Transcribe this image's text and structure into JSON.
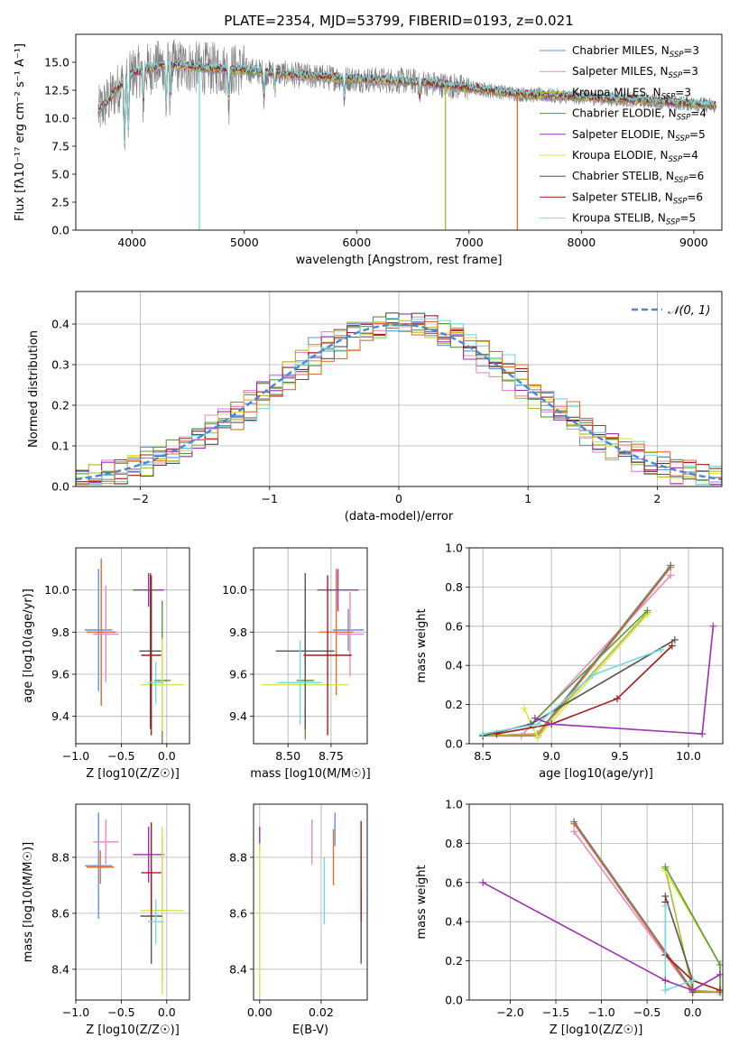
{
  "figure_title": "PLATE=2354, MJD=53799, FIBERID=0193, z=0.021",
  "colors": {
    "model_colors": [
      "#6a8fd8",
      "#e58ac6",
      "#b5b52e",
      "#5b9a3a",
      "#9b30b0",
      "#d9e44a",
      "#555555",
      "#a81b1b",
      "#73d9de"
    ],
    "extra_colors": [
      "#e07030",
      "#7a7a7a"
    ],
    "gauss": "#4a86d8"
  },
  "chart_data": [
    {
      "id": "spectrum",
      "type": "line",
      "title": "PLATE=2354, MJD=53799, FIBERID=0193, z=0.021",
      "xlabel": "wavelength [Angstrom, rest frame]",
      "ylabel": "Flux [fλ10⁻¹⁷ erg cm⁻² s⁻¹ A⁻¹]",
      "xlim": [
        3500,
        9250
      ],
      "ylim": [
        0,
        17.5
      ],
      "xticks": [
        4000,
        5000,
        6000,
        7000,
        8000,
        9000
      ],
      "xtick_labels": [
        "4000",
        "5000",
        "6000",
        "7000",
        "8000",
        "9000"
      ],
      "yticks": [
        0,
        2.5,
        5,
        7.5,
        10,
        12.5,
        15
      ],
      "ytick_labels": [
        "0.0",
        "2.5",
        "5.0",
        "7.5",
        "10.0",
        "12.5",
        "15.0"
      ],
      "legend_placement": "upper right",
      "series": [
        {
          "name": "Chabrier MILES, N_SSP=3",
          "label": "Chabrier MILES, N",
          "sub": "SSP",
          "suffix": "=3"
        },
        {
          "name": "Salpeter MILES, N_SSP=3",
          "label": "Salpeter MILES, N",
          "sub": "SSP",
          "suffix": "=3"
        },
        {
          "name": "Kroupa MILES, N_SSP=3",
          "label": "Kroupa MILES, N",
          "sub": "SSP",
          "suffix": "=3"
        },
        {
          "name": "Chabrier ELODIE, N_SSP=4",
          "label": "Chabrier ELODIE, N",
          "sub": "SSP",
          "suffix": "=4"
        },
        {
          "name": "Salpeter ELODIE, N_SSP=5",
          "label": "Salpeter ELODIE, N",
          "sub": "SSP",
          "suffix": "=5"
        },
        {
          "name": "Kroupa ELODIE, N_SSP=4",
          "label": "Kroupa ELODIE, N",
          "sub": "SSP",
          "suffix": "=4"
        },
        {
          "name": "Chabrier STELIB, N_SSP=6",
          "label": "Chabrier STELIB, N",
          "sub": "SSP",
          "suffix": "=6"
        },
        {
          "name": "Salpeter STELIB, N_SSP=6",
          "label": "Salpeter STELIB, N",
          "sub": "SSP",
          "suffix": "=6"
        },
        {
          "name": "Kroupa STELIB, N_SSP=5",
          "label": "Kroupa STELIB, N",
          "sub": "SSP",
          "suffix": "=5"
        }
      ],
      "continuum": {
        "x": [
          3700,
          3900,
          4000,
          4300,
          4600,
          5000,
          5500,
          6000,
          6500,
          7000,
          7500,
          8000,
          8500,
          9000,
          9200
        ],
        "y": [
          10.5,
          13.0,
          14.0,
          14.8,
          14.5,
          14.3,
          13.8,
          13.5,
          13.3,
          12.7,
          12.1,
          11.9,
          11.6,
          11.3,
          11.1
        ]
      },
      "cutoffs": [
        {
          "x": 4600,
          "series": 8
        },
        {
          "x": 6790,
          "series": 2
        },
        {
          "x": 7430,
          "series": "extra"
        }
      ]
    },
    {
      "id": "residuals",
      "type": "line",
      "xlabel": "(data-model)/error",
      "ylabel": "Normed distribution",
      "xlim": [
        -2.5,
        2.5
      ],
      "ylim": [
        0,
        0.48
      ],
      "xticks": [
        -2,
        -1,
        0,
        1,
        2
      ],
      "xtick_labels": [
        "−2",
        "−1",
        "0",
        "1",
        "2"
      ],
      "yticks": [
        0,
        0.1,
        0.2,
        0.3,
        0.4
      ],
      "ytick_labels": [
        "0.0",
        "0.1",
        "0.2",
        "0.3",
        "0.4"
      ],
      "legend": "𝒩(0, 1)",
      "legend_placement": "upper right",
      "gaussian": {
        "mean": 0,
        "sigma": 1
      }
    },
    {
      "id": "age_vs_Z",
      "type": "scatter",
      "xlabel": "Z [log10(Z/Z☉)]",
      "ylabel": "age  [log10(age/yr)]",
      "xlim": [
        -1.0,
        0.25
      ],
      "ylim": [
        9.27,
        10.2
      ],
      "xticks": [
        -1.0,
        -0.5,
        0.0
      ],
      "xtick_labels": [
        "−1.0",
        "−0.5",
        "0.0"
      ],
      "yticks": [
        9.4,
        9.6,
        9.8,
        10.0
      ],
      "ytick_labels": [
        "9.4",
        "9.6",
        "9.8",
        "10.0"
      ],
      "points": [
        {
          "c": 0,
          "x": -0.75,
          "y": 9.81,
          "xe": 0.15,
          "ye": 0.29
        },
        {
          "c": 9,
          "x": -0.72,
          "y": 9.8,
          "xe": 0.16,
          "ye": 0.35
        },
        {
          "c": 1,
          "x": -0.67,
          "y": 9.79,
          "xe": 0.14,
          "ye": 0.23
        },
        {
          "c": 4,
          "x": -0.2,
          "y": 10.0,
          "xe": 0.17,
          "ye": 0.08
        },
        {
          "c": 3,
          "x": -0.05,
          "y": 9.57,
          "xe": 0.09,
          "ye": 0.38
        },
        {
          "c": 5,
          "x": -0.05,
          "y": 9.55,
          "xe": 0.24,
          "ye": 0.22
        },
        {
          "c": 6,
          "x": -0.18,
          "y": 9.71,
          "xe": 0.12,
          "ye": 0.37
        },
        {
          "c": 7,
          "x": -0.17,
          "y": 9.69,
          "xe": 0.11,
          "ye": 0.38
        },
        {
          "c": 8,
          "x": -0.12,
          "y": 9.56,
          "xe": 0.09,
          "ye": 0.1
        }
      ]
    },
    {
      "id": "age_vs_mass",
      "type": "scatter",
      "xlabel": "mass [log10(M/M☉)]",
      "ylabel": "",
      "xlim": [
        8.3,
        8.96
      ],
      "ylim": [
        9.27,
        10.2
      ],
      "xticks": [
        8.5,
        8.75
      ],
      "xtick_labels": [
        "8.50",
        "8.75"
      ],
      "yticks": [
        9.4,
        9.6,
        9.8,
        10.0
      ],
      "ytick_labels": [
        "9.4",
        "9.6",
        "9.8",
        "10.0"
      ],
      "points": [
        {
          "c": 0,
          "x": 8.85,
          "y": 9.81,
          "xe": 0.09,
          "ye": 0.1
        },
        {
          "c": 9,
          "x": 8.78,
          "y": 9.8,
          "xe": 0.1,
          "ye": 0.3
        },
        {
          "c": 1,
          "x": 8.86,
          "y": 9.79,
          "xe": 0.08,
          "ye": 0.2
        },
        {
          "c": 4,
          "x": 8.79,
          "y": 10.0,
          "xe": 0.12,
          "ye": 0.1
        },
        {
          "c": 3,
          "x": 8.6,
          "y": 9.57,
          "xe": 0.05,
          "ye": 0.28
        },
        {
          "c": 5,
          "x": 8.6,
          "y": 9.55,
          "xe": 0.25,
          "ye": 0.1
        },
        {
          "c": 6,
          "x": 8.6,
          "y": 9.71,
          "xe": 0.17,
          "ye": 0.37
        },
        {
          "c": 7,
          "x": 8.73,
          "y": 9.69,
          "xe": 0.14,
          "ye": 0.38
        },
        {
          "c": 8,
          "x": 8.57,
          "y": 9.56,
          "xe": 0.13,
          "ye": 0.2
        }
      ]
    },
    {
      "id": "mass_weight_vs_age",
      "type": "line",
      "xlabel": "age  [log10(age/yr)]",
      "ylabel": "mass weight",
      "xlim": [
        8.4,
        10.25
      ],
      "ylim": [
        0,
        1.0
      ],
      "xticks": [
        8.5,
        9.0,
        9.5,
        10.0
      ],
      "xtick_labels": [
        "8.5",
        "9.0",
        "9.5",
        "10.0"
      ],
      "yticks": [
        0,
        0.2,
        0.4,
        0.6,
        0.8,
        1.0
      ],
      "ytick_labels": [
        "0.0",
        "0.2",
        "0.4",
        "0.6",
        "0.8",
        "1.0"
      ],
      "series": [
        {
          "c": 0,
          "x": [
            8.5,
            8.9,
            9.87
          ],
          "y": [
            0.04,
            0.05,
            0.91
          ]
        },
        {
          "c": 1,
          "x": [
            8.5,
            8.78,
            9.87
          ],
          "y": [
            0.04,
            0.04,
            0.86
          ]
        },
        {
          "c": 9,
          "x": [
            8.5,
            8.9,
            9.87
          ],
          "y": [
            0.04,
            0.04,
            0.9
          ]
        },
        {
          "c": 10,
          "x": [
            8.5,
            8.9,
            9.87
          ],
          "y": [
            0.04,
            0.05,
            0.91
          ]
        },
        {
          "c": 2,
          "x": [
            8.5,
            8.9,
            9.7
          ],
          "y": [
            0.04,
            0.05,
            0.67
          ]
        },
        {
          "c": 5,
          "x": [
            8.8,
            8.9,
            9.7
          ],
          "y": [
            0.18,
            0.03,
            0.66
          ]
        },
        {
          "c": 3,
          "x": [
            8.5,
            8.85,
            9.7
          ],
          "y": [
            0.04,
            0.1,
            0.68
          ]
        },
        {
          "c": 6,
          "x": [
            8.5,
            8.85,
            9.9
          ],
          "y": [
            0.04,
            0.1,
            0.53
          ]
        },
        {
          "c": 7,
          "x": [
            8.6,
            9.0,
            9.48,
            9.88
          ],
          "y": [
            0.05,
            0.1,
            0.23,
            0.5
          ]
        },
        {
          "c": 8,
          "x": [
            8.5,
            8.9,
            9.3,
            9.8
          ],
          "y": [
            0.05,
            0.1,
            0.35,
            0.48
          ]
        },
        {
          "c": 4,
          "x": [
            8.88,
            9.0,
            10.1,
            10.18
          ],
          "y": [
            0.13,
            0.1,
            0.05,
            0.6
          ]
        }
      ]
    },
    {
      "id": "mass_vs_Z",
      "type": "scatter",
      "xlabel": "Z [log10(Z/Z☉)]",
      "ylabel": "mass [log10(M/M☉)]",
      "xlim": [
        -1.0,
        0.25
      ],
      "ylim": [
        8.29,
        8.99
      ],
      "xticks": [
        -1.0,
        -0.5,
        0.0
      ],
      "xtick_labels": [
        "−1.0",
        "−0.5",
        "0.0"
      ],
      "yticks": [
        8.4,
        8.6,
        8.8
      ],
      "ytick_labels": [
        "8.4",
        "8.6",
        "8.8"
      ],
      "points": [
        {
          "c": 0,
          "x": -0.75,
          "y": 8.77,
          "xe": 0.15,
          "ye": 0.19
        },
        {
          "c": 9,
          "x": -0.73,
          "y": 8.765,
          "xe": 0.15,
          "ye": 0.06
        },
        {
          "c": 1,
          "x": -0.67,
          "y": 8.855,
          "xe": 0.14,
          "ye": 0.08
        },
        {
          "c": 4,
          "x": -0.2,
          "y": 8.81,
          "xe": 0.17,
          "ye": 0.1
        },
        {
          "c": 3,
          "x": -0.05,
          "y": 8.61,
          "xe": 0.08,
          "ye": 0.25
        },
        {
          "c": 5,
          "x": -0.05,
          "y": 8.61,
          "xe": 0.24,
          "ye": 0.3
        },
        {
          "c": 6,
          "x": -0.17,
          "y": 8.59,
          "xe": 0.12,
          "ye": 0.17
        },
        {
          "c": 7,
          "x": -0.17,
          "y": 8.745,
          "xe": 0.11,
          "ye": 0.18
        },
        {
          "c": 8,
          "x": -0.12,
          "y": 8.57,
          "xe": 0.09,
          "ye": 0.08
        }
      ]
    },
    {
      "id": "mass_vs_ebv",
      "type": "scatter",
      "xlabel": "E(B-V)",
      "ylabel": "",
      "xlim": [
        -0.002,
        0.035
      ],
      "ylim": [
        8.29,
        8.99
      ],
      "xticks": [
        0.0,
        0.02
      ],
      "xtick_labels": [
        "0.00",
        "0.02"
      ],
      "yticks": [
        8.4,
        8.6,
        8.8
      ],
      "ytick_labels": [
        "8.4",
        "8.6",
        "8.8"
      ],
      "points": [
        {
          "c": 4,
          "x": 0.0,
          "y": 8.87,
          "xe": 0,
          "ye": 0.04
        },
        {
          "c": 5,
          "x": 0.0,
          "y": 8.58,
          "xe": 0,
          "ye": 0.27
        },
        {
          "c": 1,
          "x": 0.017,
          "y": 8.855,
          "xe": 0,
          "ye": 0.08
        },
        {
          "c": 8,
          "x": 0.021,
          "y": 8.68,
          "xe": 0,
          "ye": 0.12
        },
        {
          "c": 9,
          "x": 0.024,
          "y": 8.8,
          "xe": 0,
          "ye": 0.1
        },
        {
          "c": 0,
          "x": 0.0245,
          "y": 8.9,
          "xe": 0,
          "ye": 0.06
        },
        {
          "c": 6,
          "x": 0.033,
          "y": 8.55,
          "xe": 0,
          "ye": 0.13
        },
        {
          "c": 7,
          "x": 0.033,
          "y": 8.75,
          "xe": 0,
          "ye": 0.18
        }
      ]
    },
    {
      "id": "mass_weight_vs_Z",
      "type": "line",
      "xlabel": "Z [log10(Z/Z☉)]",
      "ylabel": "mass weight",
      "xlim": [
        -2.45,
        0.33
      ],
      "ylim": [
        0,
        1.0
      ],
      "xticks": [
        -2.0,
        -1.5,
        -1.0,
        -0.5,
        0.0
      ],
      "xtick_labels": [
        "−2.0",
        "−1.5",
        "−1.0",
        "−0.5",
        "0.0"
      ],
      "yticks": [
        0,
        0.2,
        0.4,
        0.6,
        0.8,
        1.0
      ],
      "ytick_labels": [
        "0.0",
        "0.2",
        "0.4",
        "0.6",
        "0.8",
        "1.0"
      ],
      "series": [
        {
          "c": 0,
          "x": [
            -1.3,
            0.0,
            0.3
          ],
          "y": [
            0.91,
            0.05,
            0.04
          ]
        },
        {
          "c": 1,
          "x": [
            -1.3,
            0.0,
            0.3
          ],
          "y": [
            0.86,
            0.04,
            0.04
          ]
        },
        {
          "c": 9,
          "x": [
            -1.3,
            0.0,
            0.3
          ],
          "y": [
            0.9,
            0.04,
            0.04
          ]
        },
        {
          "c": 10,
          "x": [
            -1.3,
            0.0,
            0.3
          ],
          "y": [
            0.91,
            0.05,
            0.04
          ]
        },
        {
          "c": 2,
          "x": [
            -0.3,
            0.0,
            0.3
          ],
          "y": [
            0.67,
            0.05,
            0.04
          ]
        },
        {
          "c": 5,
          "x": [
            -0.3,
            0.3,
            0.3
          ],
          "y": [
            0.66,
            0.18,
            0.03
          ]
        },
        {
          "c": 3,
          "x": [
            -0.3,
            0.3,
            0.3
          ],
          "y": [
            0.68,
            0.18,
            0.04
          ]
        },
        {
          "c": 6,
          "x": [
            -0.3,
            0.0,
            0.0
          ],
          "y": [
            0.53,
            0.1,
            0.04
          ]
        },
        {
          "c": 7,
          "x": [
            -0.3,
            -0.3,
            0.0,
            0.3
          ],
          "y": [
            0.5,
            0.23,
            0.1,
            0.05
          ]
        },
        {
          "c": 8,
          "x": [
            -0.3,
            -0.3,
            0.0
          ],
          "y": [
            0.48,
            0.05,
            0.1
          ]
        },
        {
          "c": 4,
          "x": [
            -2.3,
            -0.3,
            0.0,
            0.3
          ],
          "y": [
            0.6,
            0.1,
            0.05,
            0.13
          ]
        }
      ]
    }
  ]
}
